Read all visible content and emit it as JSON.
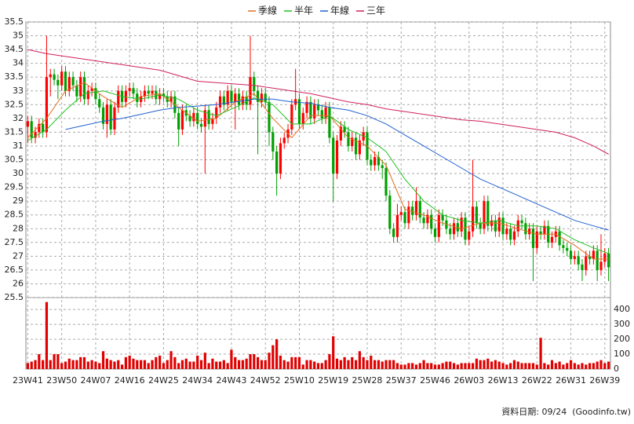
{
  "chart_data": {
    "type": "candlestick",
    "legend": {
      "position": "top",
      "series_names": "ma"
    },
    "footer": "資料日期: 09/24  (Goodinfo.tw)",
    "up_color": "#ff0000",
    "down_color": "#00a000",
    "volume_color": "#e00000",
    "grid": true,
    "categories": [
      "23W41",
      null,
      null,
      null,
      null,
      null,
      null,
      null,
      null,
      "23W50",
      null,
      null,
      null,
      null,
      null,
      null,
      null,
      null,
      "24W07",
      null,
      null,
      null,
      null,
      null,
      null,
      null,
      null,
      "24W16",
      null,
      null,
      null,
      null,
      null,
      null,
      null,
      null,
      "24W25",
      null,
      null,
      null,
      null,
      null,
      null,
      null,
      null,
      "24W34",
      null,
      null,
      null,
      null,
      null,
      null,
      null,
      null,
      "24W43",
      null,
      null,
      null,
      null,
      null,
      null,
      null,
      null,
      "24W52",
      null,
      null,
      null,
      null,
      null,
      null,
      null,
      null,
      "25W10",
      null,
      null,
      null,
      null,
      null,
      null,
      null,
      null,
      "25W19",
      null,
      null,
      null,
      null,
      null,
      null,
      null,
      null,
      "25W28",
      null,
      null,
      null,
      null,
      null,
      null,
      null,
      null,
      "25W37",
      null,
      null,
      null,
      null,
      null,
      null,
      null,
      null,
      "25W46",
      null,
      null,
      null,
      null,
      null,
      null,
      null,
      null,
      "26W03",
      null,
      null,
      null,
      null,
      null,
      null,
      null,
      null,
      "26W13",
      null,
      null,
      null,
      null,
      null,
      null,
      null,
      null,
      "26W22",
      null,
      null,
      null,
      null,
      null,
      null,
      null,
      null,
      "26W31",
      null,
      null,
      null,
      null,
      null,
      null,
      null,
      null,
      "26W39",
      null
    ],
    "open": [
      31.7,
      31.9,
      31.3,
      31.5,
      31.8,
      31.5,
      33.5,
      33.6,
      33.4,
      33.2,
      33.7,
      33.0,
      33.5,
      33.2,
      32.8,
      33.5,
      32.7,
      33.0,
      33.1,
      32.7,
      32.4,
      31.8,
      32.5,
      31.6,
      32.4,
      33.0,
      32.6,
      33.0,
      33.1,
      32.9,
      32.6,
      32.8,
      33.0,
      32.9,
      33.0,
      32.7,
      32.9,
      32.8,
      32.6,
      32.8,
      32.2,
      31.6,
      32.3,
      32.1,
      31.9,
      32.2,
      31.8,
      31.7,
      32.3,
      31.8,
      32.0,
      32.4,
      32.8,
      32.5,
      33.0,
      32.6,
      32.9,
      32.5,
      32.8,
      32.5,
      33.5,
      33.0,
      32.6,
      32.9,
      32.6,
      31.5,
      30.8,
      30.0,
      31.1,
      31.3,
      31.6,
      32.5,
      32.7,
      31.8,
      32.2,
      32.6,
      32.0,
      32.5,
      32.3,
      32.0,
      32.4,
      31.3,
      30.0,
      31.2,
      31.7,
      31.5,
      31.0,
      31.3,
      30.7,
      31.2,
      31.5,
      30.5,
      30.3,
      30.6,
      30.3,
      30.2,
      29.2,
      28.0,
      27.7,
      28.5,
      28.6,
      28.2,
      28.8,
      28.5,
      29.0,
      28.4,
      28.2,
      28.5,
      28.0,
      27.7,
      28.5,
      28.3,
      28.0,
      27.8,
      28.2,
      27.9,
      28.4,
      27.6,
      27.9,
      28.8,
      28.2,
      28.0,
      29.0,
      28.1,
      28.3,
      27.9,
      28.4,
      27.8,
      28.0,
      27.6,
      27.9,
      28.3,
      28.2,
      27.8,
      28.0,
      27.3,
      27.9,
      27.8,
      28.1,
      27.5,
      27.7,
      27.9,
      27.4,
      27.3,
      27.2,
      26.9,
      27.0,
      26.7,
      26.5,
      27.0,
      26.9,
      27.2,
      26.5,
      26.8,
      27.1
    ],
    "high": [
      32.1,
      32.1,
      31.7,
      32.0,
      32.0,
      35.0,
      33.8,
      33.8,
      33.6,
      33.9,
      33.9,
      33.7,
      33.7,
      33.4,
      33.7,
      33.7,
      33.2,
      33.3,
      33.3,
      32.9,
      32.6,
      32.7,
      32.7,
      32.6,
      33.2,
      33.2,
      33.2,
      33.3,
      33.3,
      33.1,
      33.0,
      33.2,
      33.2,
      33.2,
      33.2,
      33.1,
      33.1,
      33.0,
      33.0,
      33.0,
      32.4,
      32.5,
      32.5,
      32.3,
      32.4,
      32.4,
      32.0,
      32.5,
      32.5,
      32.2,
      32.6,
      33.0,
      33.0,
      33.2,
      33.2,
      33.1,
      33.1,
      33.0,
      33.0,
      35.0,
      33.7,
      33.2,
      33.1,
      33.1,
      32.8,
      31.7,
      31.0,
      31.3,
      31.5,
      31.8,
      32.7,
      33.8,
      32.9,
      32.4,
      32.8,
      32.8,
      32.7,
      32.7,
      32.5,
      32.6,
      32.6,
      31.5,
      31.4,
      31.9,
      31.9,
      31.7,
      31.5,
      31.5,
      31.4,
      31.7,
      31.7,
      30.7,
      30.8,
      30.8,
      30.5,
      30.4,
      29.4,
      28.2,
      28.9,
      28.8,
      28.8,
      29.0,
      29.0,
      29.5,
      29.2,
      28.6,
      28.7,
      28.7,
      28.2,
      28.7,
      28.7,
      28.5,
      28.2,
      28.4,
      28.4,
      28.6,
      28.6,
      28.1,
      30.5,
      29.0,
      28.4,
      29.2,
      29.2,
      28.5,
      28.5,
      28.6,
      28.6,
      28.2,
      28.2,
      28.1,
      28.5,
      28.5,
      28.4,
      28.2,
      28.2,
      28.1,
      28.1,
      28.3,
      28.3,
      27.9,
      28.1,
      28.1,
      27.6,
      27.5,
      27.4,
      27.2,
      27.2,
      26.9,
      27.2,
      27.2,
      27.4,
      27.4,
      27.8,
      27.3,
      27.3
    ],
    "low": [
      31.1,
      31.1,
      31.1,
      31.3,
      31.3,
      31.3,
      32.8,
      33.2,
      32.7,
      33.0,
      32.8,
      32.8,
      33.0,
      32.6,
      32.6,
      32.5,
      32.5,
      32.8,
      32.5,
      32.2,
      31.6,
      31.3,
      31.4,
      31.4,
      32.2,
      32.4,
      32.4,
      32.8,
      32.7,
      32.4,
      32.4,
      32.6,
      32.7,
      32.7,
      32.5,
      32.5,
      32.6,
      32.4,
      32.4,
      32.0,
      31.0,
      31.4,
      31.9,
      31.7,
      31.7,
      31.6,
      31.5,
      30.0,
      31.6,
      31.6,
      31.8,
      32.2,
      32.3,
      32.3,
      32.4,
      31.6,
      32.3,
      32.3,
      32.3,
      32.3,
      32.8,
      30.7,
      32.4,
      32.4,
      31.0,
      30.5,
      29.2,
      29.8,
      30.9,
      31.1,
      31.4,
      32.3,
      31.6,
      31.6,
      32.0,
      31.8,
      31.8,
      32.1,
      31.8,
      31.8,
      31.1,
      29.0,
      29.8,
      31.0,
      31.3,
      30.8,
      30.8,
      30.5,
      30.5,
      31.0,
      30.3,
      30.1,
      30.1,
      30.1,
      29.8,
      29.0,
      27.8,
      27.5,
      27.5,
      28.3,
      28.0,
      28.0,
      28.3,
      28.3,
      28.2,
      28.0,
      28.0,
      27.8,
      27.5,
      27.5,
      28.1,
      27.8,
      27.6,
      27.6,
      27.7,
      27.7,
      27.4,
      27.4,
      27.7,
      28.0,
      27.8,
      27.8,
      27.9,
      27.9,
      27.7,
      27.7,
      27.6,
      27.6,
      27.4,
      27.4,
      27.7,
      28.0,
      27.6,
      27.6,
      26.1,
      27.1,
      27.6,
      27.6,
      27.3,
      27.3,
      27.5,
      27.2,
      27.1,
      27.0,
      26.7,
      26.7,
      26.5,
      26.1,
      26.3,
      26.7,
      26.7,
      26.1,
      26.3,
      26.6,
      26.1
    ],
    "close": [
      31.9,
      31.3,
      31.5,
      31.8,
      31.5,
      33.5,
      33.6,
      33.4,
      33.2,
      33.7,
      33.0,
      33.5,
      33.2,
      32.8,
      33.5,
      32.7,
      33.0,
      33.1,
      32.7,
      32.4,
      31.8,
      32.5,
      31.6,
      32.4,
      33.0,
      32.6,
      33.0,
      33.1,
      32.9,
      32.6,
      32.8,
      33.0,
      32.9,
      33.0,
      32.7,
      32.9,
      32.8,
      32.6,
      32.8,
      32.2,
      31.6,
      32.3,
      32.1,
      31.9,
      32.2,
      31.8,
      31.7,
      32.3,
      31.8,
      32.0,
      32.4,
      32.8,
      32.5,
      33.0,
      32.6,
      32.9,
      32.5,
      32.8,
      32.5,
      33.5,
      33.0,
      32.6,
      32.9,
      32.6,
      31.5,
      30.8,
      30.0,
      31.1,
      31.3,
      31.6,
      32.5,
      32.7,
      31.8,
      32.2,
      32.6,
      32.0,
      32.5,
      32.3,
      32.0,
      32.4,
      31.3,
      30.0,
      31.2,
      31.7,
      31.5,
      31.0,
      31.3,
      30.7,
      31.2,
      31.5,
      30.5,
      30.3,
      30.6,
      30.3,
      30.2,
      29.2,
      28.0,
      27.7,
      28.5,
      28.6,
      28.2,
      28.8,
      28.5,
      29.0,
      28.4,
      28.2,
      28.5,
      28.0,
      27.7,
      28.5,
      28.3,
      28.0,
      27.8,
      28.2,
      27.9,
      28.4,
      27.6,
      27.9,
      28.8,
      28.2,
      28.0,
      29.0,
      28.1,
      28.3,
      27.9,
      28.4,
      27.8,
      28.0,
      27.6,
      27.9,
      28.3,
      28.2,
      27.8,
      28.0,
      27.3,
      27.9,
      27.8,
      28.1,
      27.5,
      27.7,
      27.9,
      27.4,
      27.3,
      27.2,
      26.9,
      27.0,
      26.7,
      26.5,
      27.0,
      26.9,
      27.2,
      26.5,
      26.8,
      27.1,
      26.6
    ],
    "volume": [
      40,
      50,
      60,
      100,
      60,
      450,
      60,
      100,
      100,
      40,
      50,
      70,
      60,
      60,
      80,
      80,
      50,
      60,
      50,
      40,
      120,
      70,
      60,
      50,
      60,
      30,
      80,
      90,
      70,
      60,
      60,
      60,
      40,
      60,
      80,
      90,
      40,
      60,
      120,
      80,
      40,
      60,
      70,
      50,
      50,
      90,
      60,
      110,
      40,
      70,
      50,
      50,
      60,
      40,
      130,
      80,
      60,
      60,
      70,
      100,
      100,
      80,
      60,
      60,
      110,
      160,
      200,
      90,
      60,
      50,
      80,
      80,
      80,
      30,
      60,
      60,
      50,
      40,
      40,
      60,
      100,
      220,
      70,
      60,
      80,
      60,
      80,
      60,
      120,
      80,
      60,
      90,
      60,
      60,
      50,
      60,
      60,
      60,
      40,
      30,
      30,
      40,
      40,
      30,
      40,
      60,
      40,
      40,
      30,
      30,
      40,
      50,
      50,
      40,
      30,
      40,
      40,
      40,
      40,
      70,
      60,
      60,
      70,
      50,
      60,
      50,
      40,
      30,
      40,
      60,
      50,
      40,
      40,
      40,
      40,
      30,
      210,
      40,
      30,
      60,
      40,
      50,
      30,
      40,
      60,
      40,
      30,
      40,
      30,
      40,
      40,
      50,
      60,
      40,
      50
    ],
    "ma_x": [
      0,
      5,
      10,
      15,
      20,
      25,
      30,
      35,
      40,
      45,
      50,
      55,
      60,
      65,
      70,
      75,
      80,
      85,
      90,
      95,
      100,
      105,
      110,
      115,
      120,
      125,
      130,
      135,
      140,
      145,
      150,
      154
    ],
    "ma": [
      {
        "name": "季線",
        "color": "#e07020",
        "values": [
          31.3,
          32.0,
          33.0,
          33.3,
          32.8,
          32.4,
          32.8,
          32.9,
          32.4,
          31.9,
          32.0,
          32.6,
          32.9,
          32.0,
          31.3,
          32.1,
          32.1,
          31.3,
          31.0,
          30.3,
          28.7,
          28.5,
          28.2,
          28.0,
          28.2,
          28.2,
          28.0,
          27.8,
          27.8,
          27.4,
          26.9,
          26.9
        ]
      },
      {
        "name": "半年",
        "color": "#20c020",
        "values": [
          31.2,
          31.6,
          32.3,
          32.9,
          33.0,
          32.8,
          32.7,
          32.85,
          32.7,
          32.3,
          32.1,
          32.4,
          32.75,
          32.5,
          31.8,
          31.8,
          32.1,
          31.6,
          31.3,
          30.8,
          29.8,
          29.0,
          28.5,
          28.3,
          28.2,
          28.3,
          28.1,
          28.1,
          28.0,
          27.6,
          27.3,
          27.1
        ]
      },
      {
        "name": "年線",
        "color": "#2060d0",
        "values": [
          null,
          null,
          31.6,
          31.75,
          31.9,
          32.0,
          32.15,
          32.3,
          32.4,
          32.45,
          32.5,
          32.6,
          32.7,
          32.7,
          32.6,
          32.55,
          32.4,
          32.3,
          32.1,
          31.8,
          31.4,
          31.0,
          30.6,
          30.2,
          29.8,
          29.5,
          29.2,
          28.9,
          28.6,
          28.3,
          28.1,
          27.95
        ]
      },
      {
        "name": "三年",
        "color": "#d02060",
        "values": [
          34.5,
          34.35,
          34.25,
          34.15,
          34.05,
          33.95,
          33.85,
          33.75,
          33.55,
          33.35,
          33.3,
          33.25,
          33.2,
          33.1,
          33.0,
          32.9,
          32.75,
          32.6,
          32.5,
          32.35,
          32.25,
          32.15,
          32.05,
          31.95,
          31.9,
          31.8,
          31.7,
          31.6,
          31.5,
          31.3,
          31.0,
          30.7
        ]
      }
    ],
    "ylim": [
      25.5,
      35.5
    ],
    "yticks": [
      25.5,
      26,
      26.5,
      27,
      27.5,
      28,
      28.5,
      29,
      29.5,
      30,
      30.5,
      31,
      31.5,
      32,
      32.5,
      33,
      33.5,
      34,
      34.5,
      35,
      35.5
    ],
    "y2lim": [
      0,
      480
    ],
    "y2ticks": [
      0,
      100,
      200,
      300,
      400
    ]
  }
}
